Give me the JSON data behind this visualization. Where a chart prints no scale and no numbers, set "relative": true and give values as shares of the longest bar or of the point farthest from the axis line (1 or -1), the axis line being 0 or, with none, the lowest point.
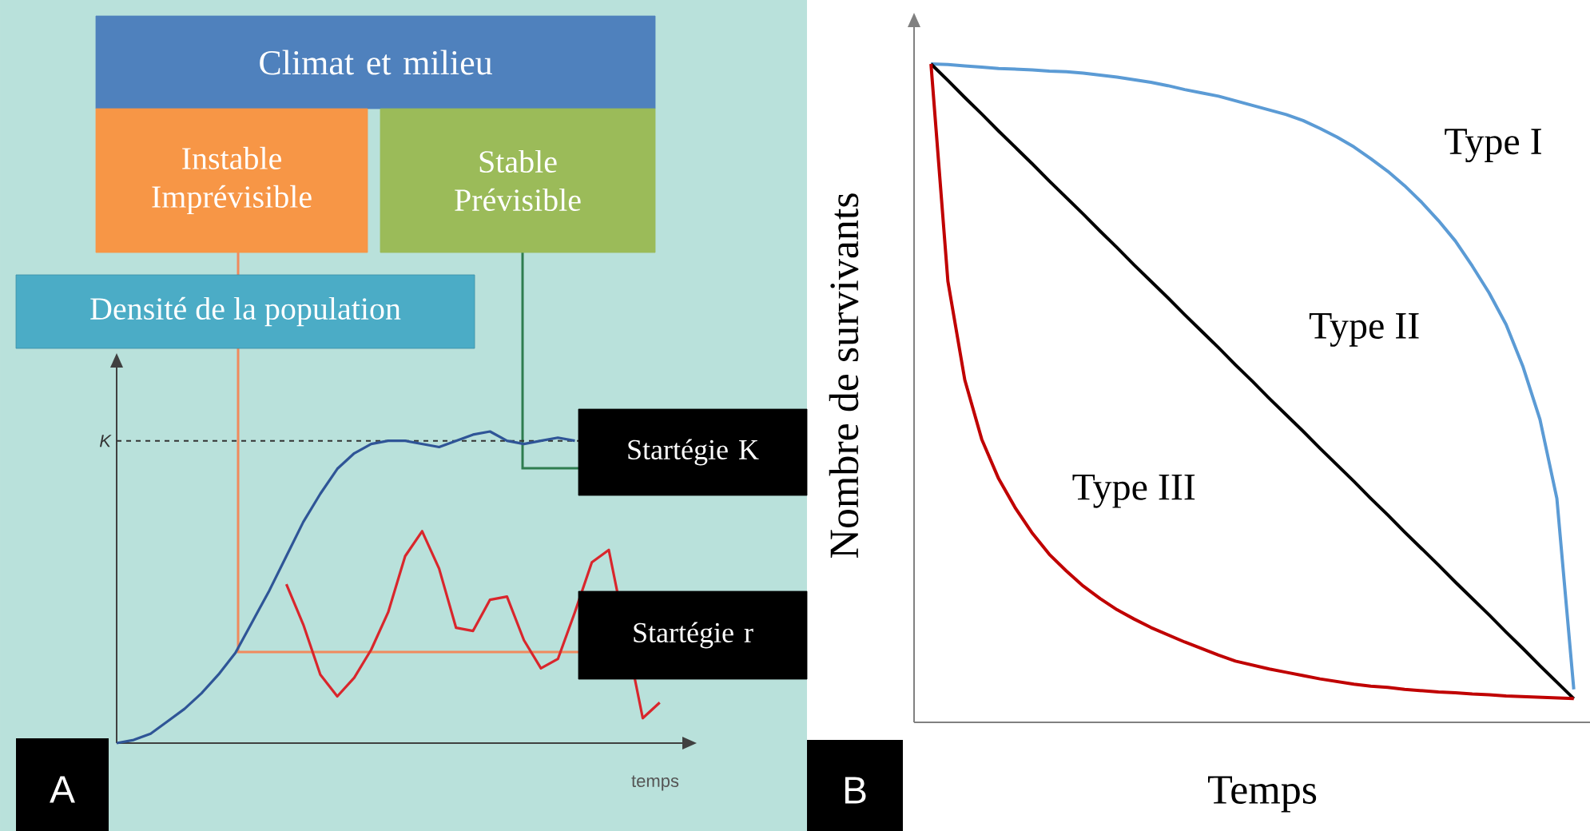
{
  "chart_data": [
    {
      "type": "line",
      "title": "A",
      "xlabel": "temps",
      "ylabel": "Densité de la population",
      "relative": true,
      "categories": [
        null,
        null,
        null,
        null,
        null,
        null,
        null,
        null,
        null,
        null,
        null,
        null,
        null,
        null,
        null,
        null,
        null,
        null,
        null,
        null,
        null,
        null,
        null,
        null,
        null,
        null,
        null,
        null,
        null,
        null,
        null,
        null,
        null
      ],
      "annotations": [
        "Climat et milieu",
        "Instable Imprévisible",
        "Stable Prévisible",
        "Startégie K",
        "Startégie r"
      ],
      "ref_lines": [
        {
          "axis": "y",
          "value": 0.97,
          "label": "K",
          "color": "#333333",
          "line_style": "dashed"
        }
      ],
      "series": [
        {
          "color": "#2f5597",
          "values": [
            0,
            0.01,
            0.03,
            0.07,
            0.11,
            0.16,
            0.22,
            0.29,
            0.39,
            0.49,
            0.6,
            0.71,
            0.8,
            0.88,
            0.93,
            0.96,
            0.97,
            0.97,
            0.96,
            0.95,
            0.97,
            0.99,
            1.0,
            0.97,
            0.96,
            0.97,
            0.98,
            0.97,
            null,
            null,
            null,
            null,
            null
          ]
        },
        {
          "color": "#d9262c",
          "values": [
            null,
            null,
            null,
            null,
            null,
            null,
            null,
            null,
            null,
            null,
            0.51,
            0.38,
            0.22,
            0.15,
            0.21,
            0.3,
            0.42,
            0.6,
            0.68,
            0.56,
            0.37,
            0.36,
            0.46,
            0.47,
            0.33,
            0.24,
            0.27,
            0.42,
            0.58,
            0.62,
            null,
            0.08,
            0.13
          ]
        }
      ]
    },
    {
      "type": "line",
      "title": "B",
      "xlabel": "Temps",
      "ylabel": "Nombre de survivants",
      "relative": true,
      "categories": [
        null,
        null,
        null,
        null,
        null,
        null,
        null,
        null,
        null,
        null,
        null,
        null,
        null,
        null,
        null,
        null,
        null,
        null,
        null,
        null,
        null,
        null,
        null,
        null,
        null,
        null,
        null,
        null,
        null,
        null,
        null,
        null,
        null,
        null,
        null,
        null,
        null,
        null,
        null
      ],
      "series": [
        {
          "name": "Type I",
          "color": "#5b9bd5",
          "values": [
            1.0,
            0.999,
            0.997,
            0.995,
            0.993,
            0.992,
            0.991,
            0.989,
            0.988,
            0.986,
            0.983,
            0.98,
            0.976,
            0.972,
            0.967,
            0.961,
            0.956,
            0.951,
            0.944,
            0.937,
            0.93,
            0.923,
            0.914,
            0.902,
            0.889,
            0.874,
            0.856,
            0.837,
            0.815,
            0.79,
            0.762,
            0.731,
            0.693,
            0.652,
            0.604,
            0.54,
            0.46,
            0.34,
            0.05
          ]
        },
        {
          "name": "Type II",
          "color": "#000000",
          "values": [
            1.0,
            0.975,
            0.949,
            0.924,
            0.898,
            0.873,
            0.848,
            0.822,
            0.797,
            0.772,
            0.746,
            0.721,
            0.695,
            0.67,
            0.645,
            0.619,
            0.594,
            0.569,
            0.543,
            0.518,
            0.492,
            0.467,
            0.442,
            0.416,
            0.391,
            0.366,
            0.34,
            0.315,
            0.289,
            0.264,
            0.239,
            0.213,
            0.188,
            0.163,
            0.137,
            0.112,
            0.086,
            0.061,
            0.036
          ]
        },
        {
          "name": "Type III",
          "color": "#c00000",
          "values": [
            1.0,
            0.67,
            0.52,
            0.43,
            0.37,
            0.325,
            0.287,
            0.255,
            0.23,
            0.207,
            0.188,
            0.171,
            0.157,
            0.144,
            0.133,
            0.122,
            0.112,
            0.102,
            0.093,
            0.087,
            0.081,
            0.076,
            0.071,
            0.066,
            0.062,
            0.058,
            0.055,
            0.053,
            0.05,
            0.048,
            0.046,
            0.045,
            0.043,
            0.042,
            0.04,
            0.039,
            0.038,
            0.037,
            0.036
          ]
        }
      ]
    }
  ]
}
